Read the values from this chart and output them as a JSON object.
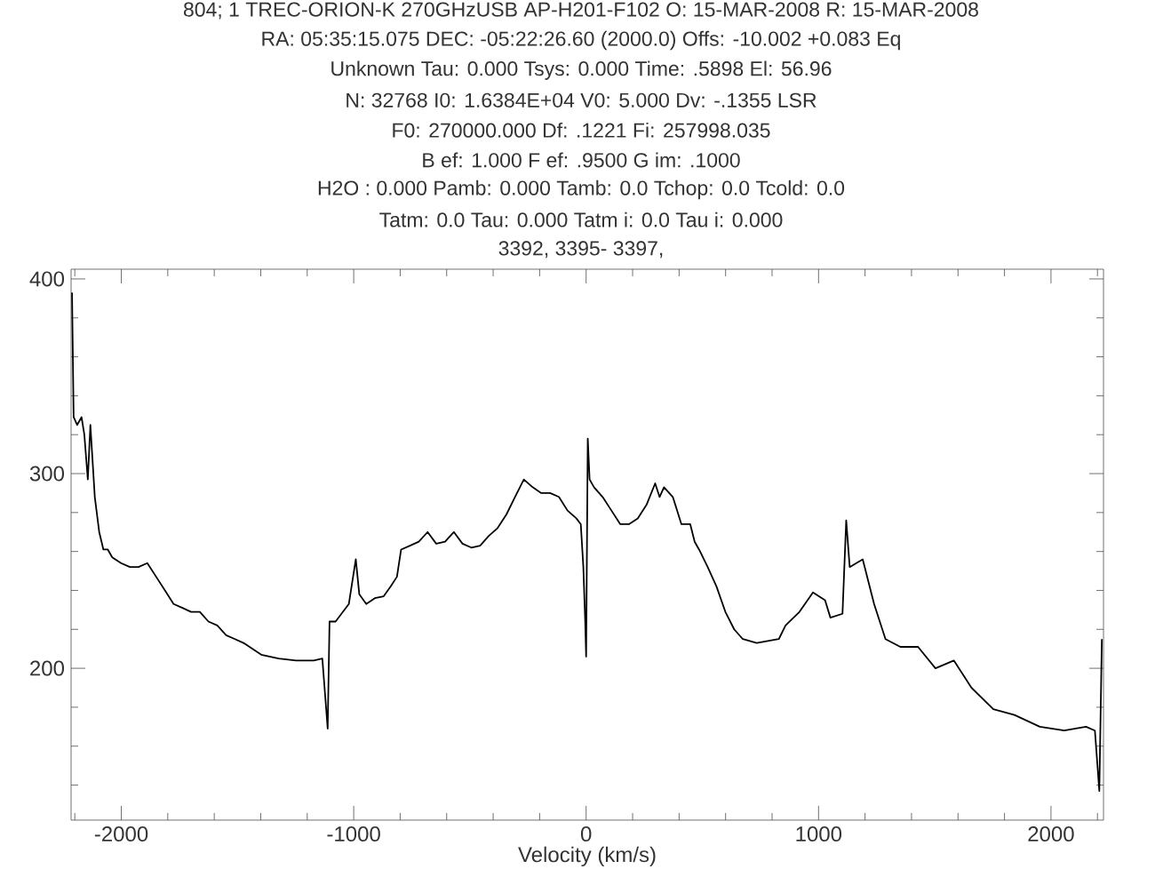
{
  "chart_data": {
    "type": "line",
    "title": "804;  1 TREC-ORION-K 270GHzUSB    AP-H201-F102 O: 15-MAR-2008 R: 15-MAR-2008",
    "annotations": [
      "RA: 05:35:15.075  DEC: -05:22:26.60  (2000.0) Offs:  -10.002       +0.083  Eq",
      "Unknown   Tau:   0.000       Tsys:   0.000        Time:   .5898        El:  56.96",
      "N: 32768  I0:  1.6384E+04        V0:   5.000      Dv:  -.1355       LSR",
      "F0:   270000.000       Df:   .1221        Fi:   257998.035",
      "B ef:   1.000        F ef:   .9500       G im:   .1000",
      "H2O :   0.000       Pamb:   0.000       Tamb:   0.0 Tchop:   0.0 Tcold:   0.0",
      "Tatm:   0.0  Tau:   0.000       Tatm i:   0.0  Tau i:   0.000",
      "3392,   3395-  3397,"
    ],
    "xlabel": "Velocity (km/s)",
    "xlim": [
      -2216,
      2226
    ],
    "ylim": [
      122,
      405
    ],
    "xticks": [
      {
        "value": -2200,
        "label": null
      },
      -2000,
      {
        "value": -1800,
        "label": null
      },
      {
        "value": -1600,
        "label": null
      },
      {
        "value": -1400,
        "label": null
      },
      {
        "value": -1200,
        "label": null
      },
      -1000,
      {
        "value": -800,
        "label": null
      },
      {
        "value": -600,
        "label": null
      },
      {
        "value": -400,
        "label": null
      },
      {
        "value": -200,
        "label": null
      },
      0,
      {
        "value": 200,
        "label": null
      },
      {
        "value": 400,
        "label": null
      },
      {
        "value": 600,
        "label": null
      },
      {
        "value": 800,
        "label": null
      },
      1000,
      {
        "value": 1200,
        "label": null
      },
      {
        "value": 1400,
        "label": null
      },
      {
        "value": 1600,
        "label": null
      },
      {
        "value": 1800,
        "label": null
      },
      2000,
      {
        "value": 2200,
        "label": null
      }
    ],
    "yticks": [
      {
        "value": 140,
        "label": null
      },
      {
        "value": 160,
        "label": null
      },
      {
        "value": 180,
        "label": null
      },
      200,
      {
        "value": 220,
        "label": null
      },
      {
        "value": 240,
        "label": null
      },
      {
        "value": 260,
        "label": null
      },
      {
        "value": 280,
        "label": null
      },
      300,
      {
        "value": 320,
        "label": null
      },
      {
        "value": 340,
        "label": null
      },
      {
        "value": 360,
        "label": null
      },
      {
        "value": 380,
        "label": null
      },
      400
    ],
    "marker": "none",
    "line_style": "solid",
    "series": [
      {
        "color": "#000000",
        "x": [
          -2212,
          -2205,
          -2190,
          -2171,
          -2159,
          -2144,
          -2133,
          -2114,
          -2095,
          -2077,
          -2058,
          -2039,
          -2001,
          -1963,
          -1926,
          -1888,
          -1850,
          -1812,
          -1775,
          -1737,
          -1700,
          -1662,
          -1625,
          -1587,
          -1549,
          -1511,
          -1474,
          -1398,
          -1323,
          -1248,
          -1172,
          -1135,
          -1112,
          -1104,
          -1078,
          -1021,
          -991,
          -976,
          -946,
          -909,
          -871,
          -841,
          -814,
          -796,
          -758,
          -720,
          -682,
          -645,
          -607,
          -569,
          -532,
          -494,
          -456,
          -419,
          -381,
          -343,
          -306,
          -268,
          -230,
          -193,
          -155,
          -117,
          -80,
          -42,
          -23,
          -12,
          -4,
          0,
          7,
          15,
          34,
          71,
          109,
          147,
          184,
          222,
          260,
          297,
          316,
          335,
          373,
          410,
          448,
          467,
          486,
          523,
          561,
          599,
          637,
          674,
          734,
          829,
          858,
          918,
          976,
          1028,
          1051,
          1103,
          1119,
          1134,
          1190,
          1239,
          1288,
          1352,
          1428,
          1503,
          1582,
          1658,
          1752,
          1843,
          1952,
          2057,
          2151,
          2189,
          2208,
          2219
        ],
        "values": [
          393,
          329,
          325,
          329,
          320,
          297,
          325,
          288,
          270,
          261,
          261,
          257,
          254,
          252,
          252,
          254,
          247,
          240,
          233,
          231,
          229,
          229,
          224,
          222,
          217,
          215,
          213,
          207,
          205,
          204,
          204,
          205,
          169,
          224,
          224,
          233,
          256,
          238,
          233,
          236,
          237,
          242,
          247,
          261,
          263,
          265,
          270,
          264,
          265,
          270,
          264,
          262,
          263,
          268,
          272,
          279,
          288,
          297,
          293,
          290,
          290,
          288,
          281,
          277,
          274,
          252,
          224,
          206,
          318,
          297,
          293,
          288,
          281,
          274,
          274,
          277,
          284,
          295,
          288,
          293,
          288,
          274,
          274,
          265,
          261,
          252,
          242,
          229,
          220,
          215,
          213,
          215,
          222,
          229,
          239,
          235,
          226,
          228,
          276,
          252,
          256,
          233,
          215,
          211,
          211,
          200,
          204,
          190,
          179,
          176,
          170,
          168,
          170,
          168,
          137,
          215
        ]
      }
    ]
  }
}
